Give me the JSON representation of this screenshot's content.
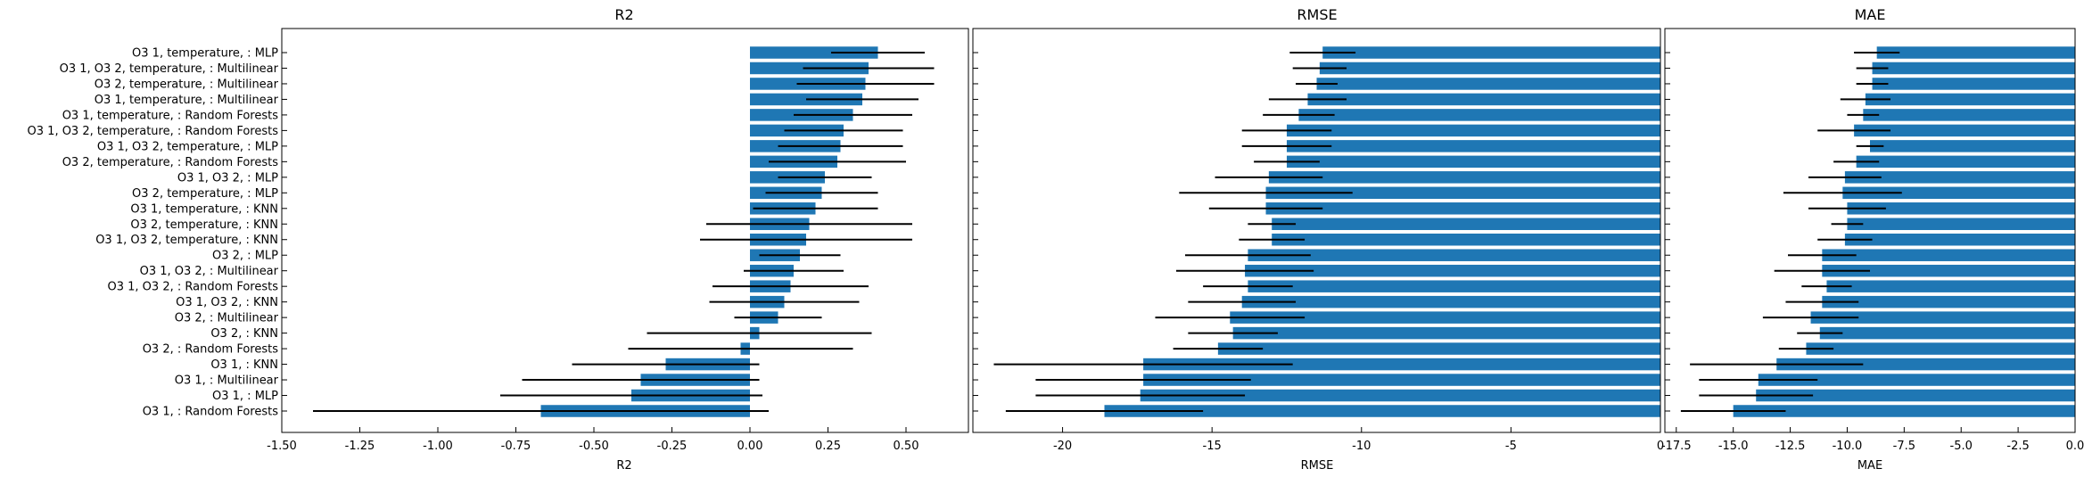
{
  "chart_data": [
    {
      "type": "bar",
      "orientation": "horizontal",
      "title": "R2",
      "xlabel": "R2",
      "xlim": [
        -1.5,
        0.7
      ],
      "xticks": [
        "-1.50",
        "-1.25",
        "-1.00",
        "-0.75",
        "-0.50",
        "-0.25",
        "0.00",
        "0.25",
        "0.50"
      ],
      "xtick_values": [
        -1.5,
        -1.25,
        -1.0,
        -0.75,
        -0.5,
        -0.25,
        0.0,
        0.25,
        0.5
      ],
      "categories": [
        "O3 1, temperature, : MLP",
        "O3 1, O3 2, temperature, : Multilinear",
        "O3 2, temperature, : Multilinear",
        "O3 1, temperature, : Multilinear",
        "O3 1, temperature, : Random Forests",
        "O3 1, O3 2, temperature, : Random Forests",
        "O3 1, O3 2, temperature, : MLP",
        "O3 2, temperature, : Random Forests",
        "O3 1, O3 2, : MLP",
        "O3 2, temperature, : MLP",
        "O3 1, temperature, : KNN",
        "O3 2, temperature, : KNN",
        "O3 1, O3 2, temperature, : KNN",
        "O3 2, : MLP",
        "O3 1, O3 2, : Multilinear",
        "O3 1, O3 2, : Random Forests",
        "O3 1, O3 2, : KNN",
        "O3 2, : Multilinear",
        "O3 2, : KNN",
        "O3 2, : Random Forests",
        "O3 1, : KNN",
        "O3 1, : Multilinear",
        "O3 1, : MLP",
        "O3 1, : Random Forests"
      ],
      "values": [
        0.41,
        0.38,
        0.37,
        0.36,
        0.33,
        0.3,
        0.29,
        0.28,
        0.24,
        0.23,
        0.21,
        0.19,
        0.18,
        0.16,
        0.14,
        0.13,
        0.11,
        0.09,
        0.03,
        -0.03,
        -0.27,
        -0.35,
        -0.38,
        -0.67
      ],
      "errors": [
        0.15,
        0.21,
        0.22,
        0.18,
        0.19,
        0.19,
        0.2,
        0.22,
        0.15,
        0.18,
        0.2,
        0.33,
        0.34,
        0.13,
        0.16,
        0.25,
        0.24,
        0.14,
        0.36,
        0.36,
        0.3,
        0.38,
        0.42,
        0.73
      ],
      "color": "#1f77b4",
      "error_color": "#000000"
    },
    {
      "type": "bar",
      "orientation": "horizontal",
      "title": "RMSE",
      "xlabel": "RMSE",
      "xlim": [
        -23,
        0
      ],
      "xticks": [
        "-20",
        "-15",
        "-10",
        "-5",
        "0"
      ],
      "xtick_values": [
        -20,
        -15,
        -10,
        -5,
        0
      ],
      "values": [
        -11.3,
        -11.4,
        -11.5,
        -11.8,
        -12.1,
        -12.5,
        -12.5,
        -12.5,
        -13.1,
        -13.2,
        -13.2,
        -13.0,
        -13.0,
        -13.8,
        -13.9,
        -13.8,
        -14.0,
        -14.4,
        -14.3,
        -14.8,
        -17.3,
        -17.3,
        -17.4,
        -18.6
      ],
      "errors": [
        1.1,
        0.9,
        0.7,
        1.3,
        1.2,
        1.5,
        1.5,
        1.1,
        1.8,
        2.9,
        1.9,
        0.8,
        1.1,
        2.1,
        2.3,
        1.5,
        1.8,
        2.5,
        1.5,
        1.5,
        5.0,
        3.6,
        3.5,
        3.3
      ],
      "color": "#1f77b4",
      "error_color": "#000000"
    },
    {
      "type": "bar",
      "orientation": "horizontal",
      "title": "MAE",
      "xlabel": "MAE",
      "xlim": [
        -18,
        0
      ],
      "xticks": [
        "-17.5",
        "-15.0",
        "-12.5",
        "-10.0",
        "-7.5",
        "-5.0",
        "-2.5",
        "0.0"
      ],
      "xtick_values": [
        -17.5,
        -15.0,
        -12.5,
        -10.0,
        -7.5,
        -5.0,
        -2.5,
        0.0
      ],
      "values": [
        -8.7,
        -8.9,
        -8.9,
        -9.2,
        -9.3,
        -9.7,
        -9.0,
        -9.6,
        -10.1,
        -10.2,
        -10.0,
        -10.0,
        -10.1,
        -11.1,
        -11.1,
        -10.9,
        -11.1,
        -11.6,
        -11.2,
        -11.8,
        -13.1,
        -13.9,
        -14.0,
        -15.0
      ],
      "errors": [
        1.0,
        0.7,
        0.7,
        1.1,
        0.7,
        1.6,
        0.6,
        1.0,
        1.6,
        2.6,
        1.7,
        0.7,
        1.2,
        1.5,
        2.1,
        1.1,
        1.6,
        2.1,
        1.0,
        1.2,
        3.8,
        2.6,
        2.5,
        2.3
      ],
      "color": "#1f77b4",
      "error_color": "#000000"
    }
  ]
}
